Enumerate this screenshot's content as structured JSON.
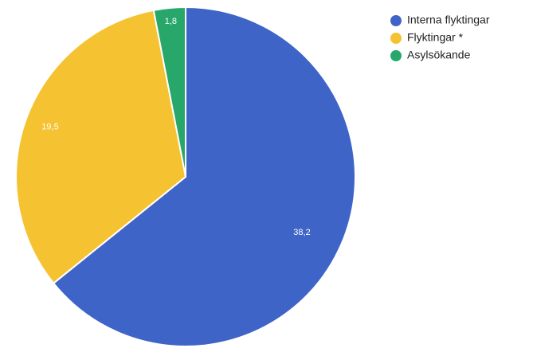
{
  "chart_data": {
    "type": "pie",
    "categories": [
      "Interna flyktingar",
      "Flyktingar *",
      "Asylsökande"
    ],
    "values": [
      38.2,
      19.5,
      1.8
    ],
    "value_labels": [
      "38,2",
      "19,5",
      "1,8"
    ],
    "colors": [
      "#3f64c8",
      "#f5c232",
      "#27a86a"
    ],
    "start_angle_deg": 0,
    "direction": "clockwise",
    "legend_position": "top-right",
    "title": ""
  }
}
